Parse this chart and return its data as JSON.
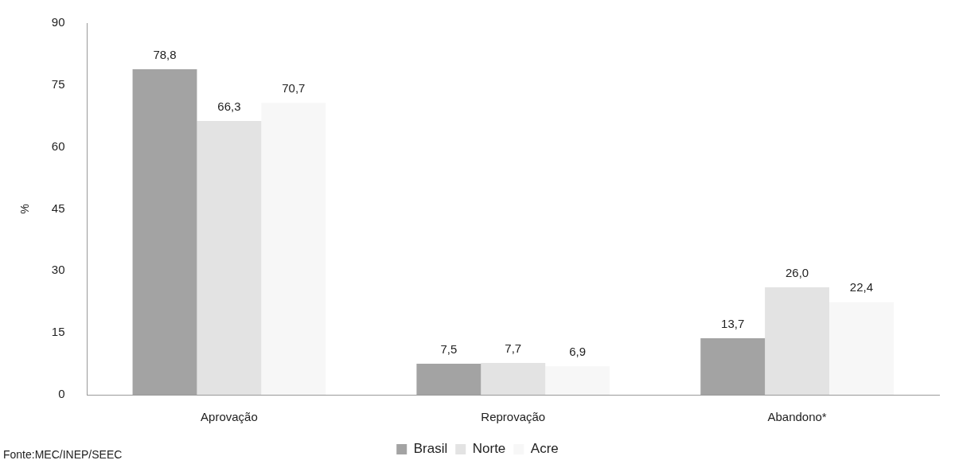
{
  "chart_data": {
    "type": "bar",
    "ylabel": "%",
    "categories": [
      "Aprovação",
      "Reprovação",
      "Abandono*"
    ],
    "series": [
      {
        "name": "Brasil",
        "color": "#a3a3a3",
        "values": [
          78.8,
          7.5,
          13.7
        ],
        "value_labels": [
          "78,8",
          "7,5",
          "13,7"
        ]
      },
      {
        "name": "Norte",
        "color": "#e3e3e3",
        "values": [
          66.3,
          7.7,
          26.0
        ],
        "value_labels": [
          "66,3",
          "7,7",
          "26,0"
        ]
      },
      {
        "name": "Acre",
        "color": "#f7f7f7",
        "values": [
          70.7,
          6.9,
          22.4
        ],
        "value_labels": [
          "70,7",
          "6,9",
          "22,4"
        ]
      }
    ],
    "ylim": [
      0,
      90
    ],
    "yticks": [
      0,
      15,
      30,
      45,
      60,
      75,
      90
    ],
    "grid": false,
    "legend": "bottom",
    "annotations": [
      "Fonte:MEC/INEP/SEEC"
    ]
  }
}
